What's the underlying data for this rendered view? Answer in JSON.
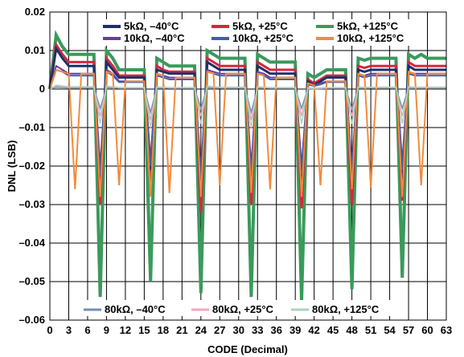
{
  "chart_data": {
    "type": "line",
    "title": "",
    "xlabel": "CODE (Decimal)",
    "ylabel": "DNL (LSB)",
    "xlim": [
      0,
      63
    ],
    "ylim": [
      -0.06,
      0.02
    ],
    "x_ticks": [
      0,
      3,
      6,
      9,
      12,
      15,
      18,
      21,
      24,
      27,
      30,
      33,
      36,
      39,
      42,
      45,
      48,
      51,
      54,
      57,
      60,
      63
    ],
    "y_ticks": [
      0.02,
      0.01,
      0,
      -0.01,
      -0.02,
      -0.03,
      -0.04,
      -0.05,
      -0.06
    ],
    "y_tick_labels": [
      "0.02",
      "0.01",
      "0",
      "–0.01",
      "–0.02",
      "–0.03",
      "–0.04",
      "–0.05",
      "–0.06"
    ],
    "grid": true,
    "x": [
      0,
      1,
      2,
      3,
      4,
      5,
      6,
      7,
      8,
      9,
      10,
      11,
      12,
      13,
      14,
      15,
      16,
      17,
      18,
      19,
      20,
      21,
      22,
      23,
      24,
      25,
      26,
      27,
      28,
      29,
      30,
      31,
      32,
      33,
      34,
      35,
      36,
      37,
      38,
      39,
      40,
      41,
      42,
      43,
      44,
      45,
      46,
      47,
      48,
      49,
      50,
      51,
      52,
      53,
      54,
      55,
      56,
      57,
      58,
      59,
      60,
      61,
      62,
      63
    ],
    "series": [
      {
        "name": "5kΩ, –40°C",
        "color": "#1f2f6b",
        "values": [
          0,
          0.0105,
          0.008,
          0.006,
          0.006,
          0.006,
          0.006,
          0.006,
          -0.025,
          0.007,
          0.005,
          0.003,
          0.003,
          0.003,
          0.003,
          0.003,
          -0.021,
          0.005,
          0.0045,
          0.004,
          0.004,
          0.004,
          0.004,
          0.004,
          -0.027,
          0.007,
          0.006,
          0.005,
          0.005,
          0.005,
          0.005,
          0.005,
          -0.025,
          0.006,
          0.005,
          0.004,
          0.004,
          0.004,
          0.004,
          0.004,
          -0.026,
          0.002,
          0.001,
          0.002,
          0.003,
          0.003,
          0.003,
          0.003,
          -0.025,
          0.005,
          0.0045,
          0.005,
          0.005,
          0.005,
          0.005,
          0.005,
          -0.024,
          0.006,
          0.005,
          0.005,
          0.005,
          0.005,
          0.005,
          0.005
        ]
      },
      {
        "name": "5kΩ, +25°C",
        "color": "#d7263d",
        "values": [
          0,
          0.0115,
          0.009,
          0.007,
          0.007,
          0.007,
          0.007,
          0.007,
          -0.03,
          0.008,
          0.006,
          0.0035,
          0.0035,
          0.0035,
          0.0035,
          0.0035,
          -0.025,
          0.006,
          0.005,
          0.0045,
          0.0045,
          0.0045,
          0.0045,
          0.0045,
          -0.032,
          0.008,
          0.007,
          0.006,
          0.006,
          0.006,
          0.006,
          0.006,
          -0.03,
          0.007,
          0.006,
          0.005,
          0.005,
          0.005,
          0.005,
          0.005,
          -0.031,
          0.0025,
          0.0015,
          0.0025,
          0.0035,
          0.0035,
          0.0035,
          0.0035,
          -0.03,
          0.006,
          0.0055,
          0.006,
          0.006,
          0.006,
          0.006,
          0.006,
          -0.029,
          0.007,
          0.006,
          0.006,
          0.006,
          0.006,
          0.006,
          0.006
        ]
      },
      {
        "name": "5kΩ, +125°C",
        "color": "#3a9a5b",
        "values": [
          0,
          0.014,
          0.011,
          0.009,
          0.009,
          0.009,
          0.009,
          0.009,
          -0.054,
          0.01,
          0.008,
          0.005,
          0.005,
          0.005,
          0.005,
          0.005,
          -0.05,
          0.008,
          0.007,
          0.006,
          0.006,
          0.006,
          0.006,
          0.006,
          -0.053,
          0.01,
          0.009,
          0.008,
          0.008,
          0.008,
          0.008,
          0.008,
          -0.054,
          0.009,
          0.008,
          0.007,
          0.007,
          0.007,
          0.007,
          0.007,
          -0.055,
          0.004,
          0.003,
          0.004,
          0.005,
          0.005,
          0.005,
          0.005,
          -0.052,
          0.008,
          0.0075,
          0.008,
          0.008,
          0.008,
          0.008,
          0.008,
          -0.049,
          0.009,
          0.008,
          0.009,
          0.008,
          0.008,
          0.008,
          0.008
        ]
      },
      {
        "name": "10kΩ, –40°C",
        "color": "#6a3d9a",
        "values": [
          0,
          0.006,
          0.005,
          0.004,
          0.004,
          0.004,
          0.004,
          0.004,
          -0.02,
          0.005,
          0.004,
          0.002,
          0.002,
          0.002,
          0.002,
          0.002,
          -0.018,
          0.004,
          0.0035,
          0.003,
          0.003,
          0.003,
          0.003,
          0.003,
          -0.021,
          0.005,
          0.0045,
          0.004,
          0.004,
          0.004,
          0.004,
          0.004,
          -0.02,
          0.0045,
          0.004,
          0.003,
          0.003,
          0.003,
          0.003,
          0.003,
          -0.02,
          0.0015,
          0.001,
          0.0015,
          0.002,
          0.002,
          0.002,
          0.002,
          -0.02,
          0.004,
          0.0035,
          0.004,
          0.004,
          0.004,
          0.004,
          0.004,
          -0.019,
          0.0045,
          0.004,
          0.004,
          0.004,
          0.004,
          0.004,
          0.004
        ]
      },
      {
        "name": "10kΩ, +25°C",
        "color": "#3f5fa8",
        "values": [
          0,
          0.005,
          0.0045,
          0.0035,
          0.0035,
          0.0035,
          0.0035,
          0.0035,
          -0.022,
          0.0045,
          0.0035,
          0.0018,
          0.0018,
          0.0018,
          0.0018,
          0.0018,
          -0.02,
          0.0035,
          0.003,
          0.0025,
          0.0025,
          0.0025,
          0.0025,
          0.0025,
          -0.023,
          0.0045,
          0.004,
          0.0035,
          0.0035,
          0.0035,
          0.0035,
          0.0035,
          -0.022,
          0.004,
          0.0035,
          0.0025,
          0.0025,
          0.0025,
          0.0025,
          0.0025,
          -0.022,
          0.0012,
          0.0008,
          0.0012,
          0.0018,
          0.0018,
          0.0018,
          0.0018,
          -0.022,
          0.0035,
          0.003,
          0.0035,
          0.0035,
          0.0035,
          0.0035,
          0.0035,
          -0.021,
          0.004,
          0.0035,
          0.0035,
          0.0035,
          0.0035,
          0.0035,
          0.0035
        ]
      },
      {
        "name": "10kΩ, +125°C",
        "color": "#f58a3a",
        "values": [
          0,
          0.005,
          0.0045,
          0.004,
          -0.026,
          0.004,
          0.004,
          0.004,
          -0.028,
          0.0045,
          0.004,
          -0.025,
          0.002,
          0.002,
          0.002,
          0.002,
          -0.028,
          0.004,
          0.0035,
          -0.027,
          0.003,
          0.003,
          0.003,
          0.003,
          -0.028,
          0.0045,
          0.004,
          -0.025,
          0.004,
          0.004,
          0.004,
          0.004,
          -0.027,
          0.004,
          0.0035,
          -0.026,
          0.003,
          0.003,
          0.003,
          0.003,
          -0.028,
          0.0015,
          0.001,
          -0.025,
          0.002,
          0.002,
          0.002,
          0.002,
          -0.026,
          0.004,
          0.0035,
          -0.0255,
          0.004,
          0.004,
          0.004,
          0.004,
          -0.028,
          0.0045,
          0.004,
          -0.025,
          0.004,
          0.004,
          0.004,
          0.004
        ]
      },
      {
        "name": "80kΩ, –40°C",
        "color": "#6f8fb0",
        "values": [
          0,
          0.0005,
          0.0004,
          0.0003,
          0.0003,
          0.0003,
          0.0003,
          0.0003,
          -0.005,
          0.0004,
          0.0003,
          0.0002,
          0.0002,
          0.0002,
          0.0002,
          0.0002,
          -0.006,
          0.0003,
          0.0003,
          0.0002,
          0.0002,
          0.0002,
          0.0002,
          0.0002,
          -0.005,
          0.0004,
          0.0003,
          0.0003,
          0.0003,
          0.0003,
          0.0003,
          0.0003,
          -0.006,
          0.0003,
          0.0003,
          0.0002,
          0.0002,
          0.0002,
          0.0002,
          0.0002,
          -0.005,
          0.0001,
          0.0001,
          0.0001,
          0.0002,
          0.0002,
          0.0002,
          0.0002,
          -0.005,
          0.0003,
          0.0003,
          0.0003,
          0.0003,
          0.0003,
          0.0003,
          0.0003,
          -0.005,
          0.0004,
          0.0003,
          0.0003,
          0.0003,
          0.0003,
          0.0003,
          0.0003
        ]
      },
      {
        "name": "80kΩ, +25°C",
        "color": "#f4a6b7",
        "values": [
          0,
          0.0008,
          0.0006,
          0.0005,
          0.0005,
          0.0005,
          0.0005,
          0.0005,
          -0.007,
          0.0006,
          0.0005,
          0.0003,
          0.0003,
          0.0003,
          0.0003,
          0.0003,
          -0.008,
          0.0005,
          0.0004,
          0.0003,
          0.0003,
          0.0003,
          0.0003,
          0.0003,
          -0.007,
          0.0006,
          0.0005,
          0.0004,
          0.0004,
          0.0004,
          0.0004,
          0.0004,
          -0.008,
          0.0005,
          0.0004,
          0.0003,
          0.0003,
          0.0003,
          0.0003,
          0.0003,
          -0.007,
          0.0002,
          0.0001,
          0.0002,
          0.0003,
          0.0003,
          0.0003,
          0.0003,
          -0.007,
          0.0004,
          0.0004,
          0.0004,
          0.0004,
          0.0004,
          0.0004,
          0.0004,
          -0.007,
          0.0005,
          0.0004,
          0.0004,
          0.0004,
          0.0004,
          0.0004,
          0.0004
        ]
      },
      {
        "name": "80kΩ, +125°C",
        "color": "#a8d5b8",
        "values": [
          0,
          0.001,
          0.0008,
          0.0006,
          0.0006,
          0.0006,
          0.0006,
          0.0006,
          -0.009,
          0.0008,
          0.0006,
          0.0004,
          0.0004,
          0.0004,
          0.0004,
          0.0004,
          -0.01,
          0.0006,
          0.0005,
          0.0004,
          0.0004,
          0.0004,
          0.0004,
          0.0004,
          -0.009,
          0.0008,
          0.0006,
          0.0005,
          0.0005,
          0.0005,
          0.0005,
          0.0005,
          -0.01,
          0.0006,
          0.0005,
          0.0004,
          0.0004,
          0.0004,
          0.0004,
          0.0004,
          -0.009,
          0.0003,
          0.0002,
          0.0003,
          0.0004,
          0.0004,
          0.0004,
          0.0004,
          -0.009,
          0.0005,
          0.0005,
          0.0005,
          0.0005,
          0.0005,
          0.0005,
          0.0005,
          -0.009,
          0.0006,
          0.0005,
          0.0005,
          0.0005,
          0.0005,
          0.0005,
          0.0005
        ]
      }
    ],
    "legend": {
      "placement": "top and bottom inside plot",
      "top": [
        "5kΩ, –40°C",
        "5kΩ, +25°C",
        "5kΩ, +125°C",
        "10kΩ, –40°C",
        "10kΩ, +25°C",
        "10kΩ, +125°C"
      ],
      "bottom": [
        "80kΩ, –40°C",
        "80kΩ, +25°C",
        "80kΩ, +125°C"
      ]
    }
  }
}
